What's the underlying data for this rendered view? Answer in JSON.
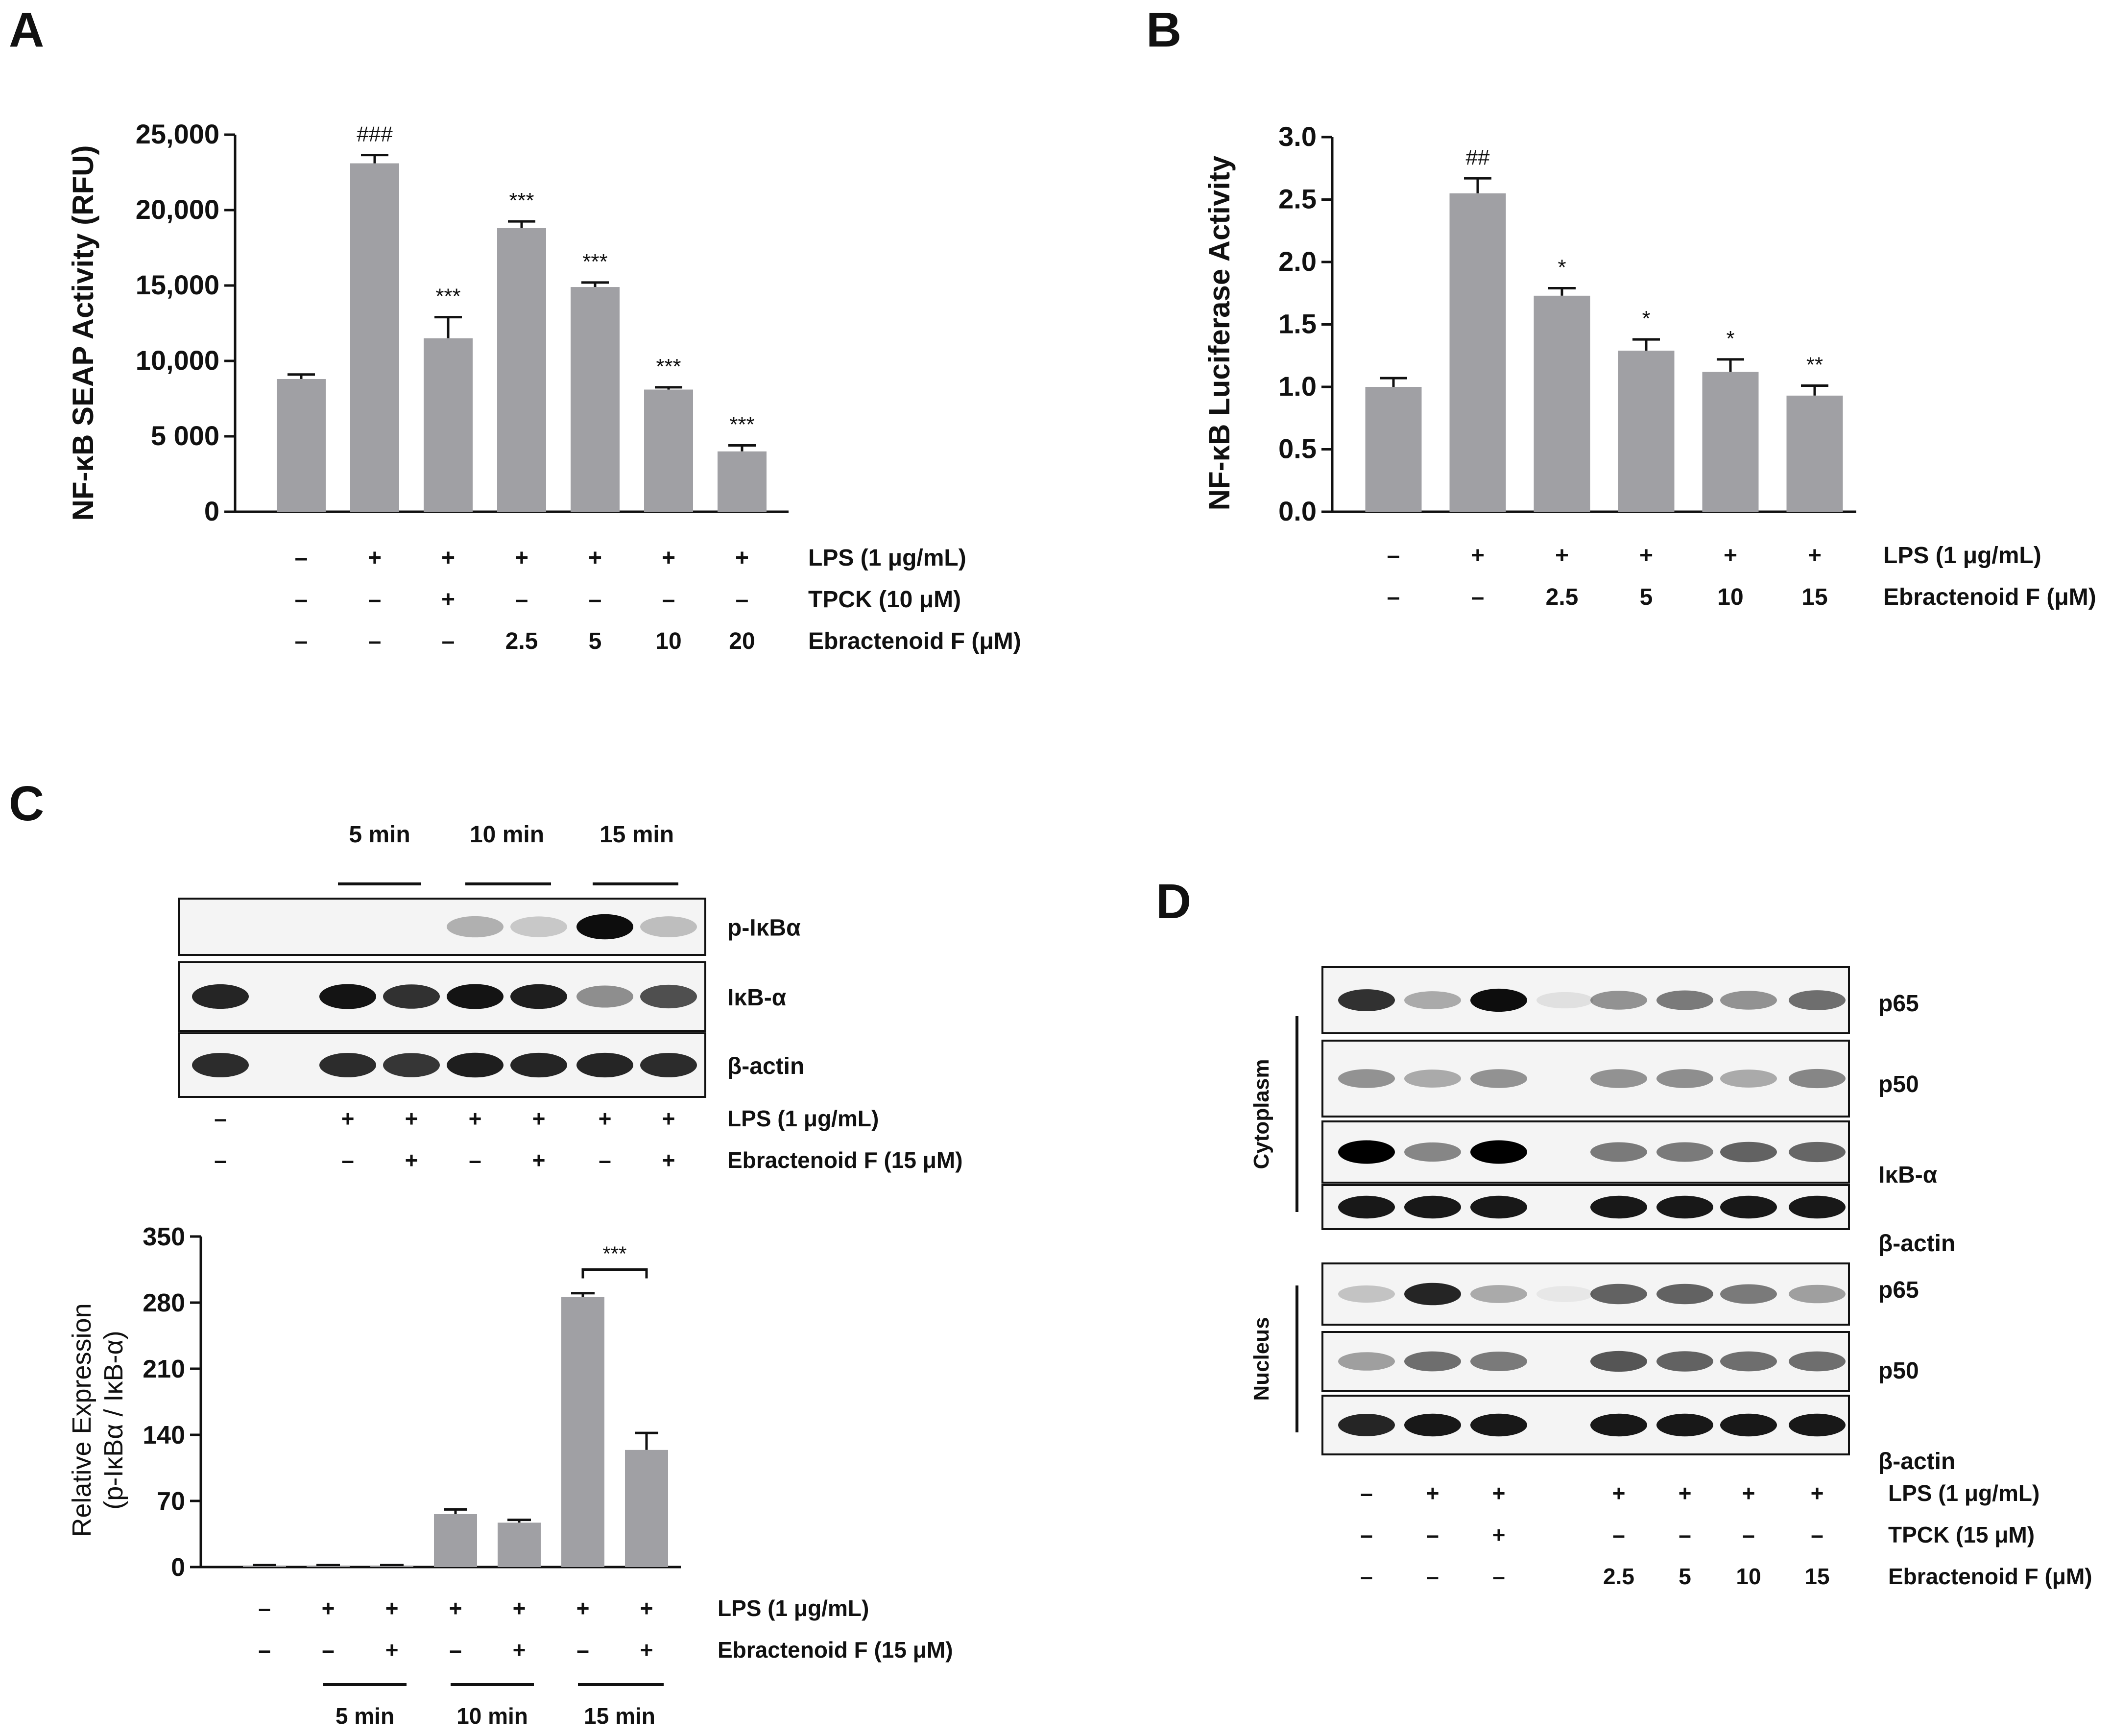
{
  "bar_color": "#a0a0a4",
  "axis_color": "#111111",
  "panel_A": {
    "letter": "A",
    "ylabel": "NF-κB SEAP Activity (RFU)",
    "row_labels": [
      "LPS (1 μg/mL)",
      "TPCK (10 μM)",
      "Ebractenoid F (μM)"
    ],
    "rows": [
      [
        "–",
        "+",
        "+",
        "+",
        "+",
        "+",
        "+"
      ],
      [
        "–",
        "–",
        "+",
        "–",
        "–",
        "–",
        "–"
      ],
      [
        "–",
        "–",
        "–",
        "2.5",
        "5",
        "10",
        "20"
      ]
    ]
  },
  "panel_B": {
    "letter": "B",
    "ylabel": "NF-κB Luciferase Activity",
    "row_labels": [
      "LPS (1 μg/mL)",
      "Ebractenoid F (μM)"
    ],
    "rows": [
      [
        "–",
        "+",
        "+",
        "+",
        "+",
        "+"
      ],
      [
        "–",
        "–",
        "2.5",
        "5",
        "10",
        "15"
      ]
    ]
  },
  "panel_C": {
    "letter": "C",
    "time_labels": [
      "5 min",
      "10 min",
      "15 min"
    ],
    "blot_labels": [
      "p-IκBα",
      "IκB-α",
      "β-actin"
    ],
    "blot_row_labels": [
      "LPS (1 μg/mL)",
      "Ebractenoid F (15 μM)"
    ],
    "blot_rows": [
      [
        "–",
        "+",
        "+",
        "+",
        "+",
        "+",
        "+"
      ],
      [
        "–",
        "–",
        "+",
        "–",
        "+",
        "–",
        "+"
      ]
    ],
    "bands": [
      [
        0,
        0,
        0,
        0.28,
        0.18,
        0.95,
        0.22
      ],
      [
        0.85,
        0,
        0.92,
        0.8,
        0.92,
        0.88,
        0.42,
        0.68
      ],
      [
        0.82,
        0,
        0.82,
        0.78,
        0.88,
        0.85,
        0.85,
        0.82
      ]
    ],
    "ylabel_line1": "Relative Expression",
    "ylabel_line2": "(p-IκBα / IκB-α)",
    "sig_label": "***",
    "bar_row_labels": [
      "LPS (1 μg/mL)",
      "Ebractenoid F (15 μM)"
    ],
    "bar_rows": [
      [
        "–",
        "+",
        "+",
        "+",
        "+",
        "+",
        "+"
      ],
      [
        "–",
        "–",
        "+",
        "–",
        "+",
        "–",
        "+"
      ]
    ]
  },
  "panel_D": {
    "letter": "D",
    "group_labels": [
      "Cytoplasm",
      "Nucleus"
    ],
    "blot_labels": [
      "p65",
      "p50",
      "IκB-α",
      "β-actin",
      "p65",
      "p50",
      "β-actin"
    ],
    "row_labels": [
      "LPS (1 μg/mL)",
      "TPCK (15 μM)",
      "Ebractenoid F (μM)"
    ],
    "rows": [
      [
        "–",
        "+",
        "+",
        "+",
        "+",
        "+",
        "+"
      ],
      [
        "–",
        "–",
        "+",
        "–",
        "–",
        "–",
        "–"
      ],
      [
        "–",
        "–",
        "–",
        "2.5",
        "5",
        "10",
        "15"
      ]
    ],
    "bands": [
      [
        0.8,
        0.3,
        0.95,
        0.08,
        0.4,
        0.5,
        0.4,
        0.55
      ],
      [
        0.4,
        0.3,
        0.4,
        0,
        0.4,
        0.42,
        0.3,
        0.45
      ],
      [
        1.0,
        0.45,
        1.0,
        0,
        0.5,
        0.5,
        0.6,
        0.58
      ],
      [
        0.9,
        0.9,
        0.9,
        0,
        0.9,
        0.9,
        0.9,
        0.9
      ],
      [
        0.2,
        0.85,
        0.3,
        0.05,
        0.6,
        0.6,
        0.5,
        0.35
      ],
      [
        0.35,
        0.55,
        0.5,
        0,
        0.65,
        0.6,
        0.55,
        0.55
      ],
      [
        0.85,
        0.9,
        0.9,
        0,
        0.9,
        0.9,
        0.9,
        0.9
      ]
    ]
  },
  "chart_data": [
    {
      "type": "bar",
      "panel": "A",
      "ylabel": "NF-κB SEAP Activity (RFU)",
      "ylim": [
        0,
        25000
      ],
      "yticks": [
        0,
        5000,
        10000,
        15000,
        20000,
        25000
      ],
      "ytick_labels": [
        "0",
        "5 000",
        "10,000",
        "15,000",
        "20,000",
        "25,000"
      ],
      "values": [
        8800,
        23100,
        11500,
        18800,
        14900,
        8100,
        4000
      ],
      "errors": [
        300,
        550,
        1400,
        450,
        300,
        150,
        400
      ],
      "annotations": [
        "",
        "###",
        "***",
        "***",
        "***",
        "***",
        "***"
      ]
    },
    {
      "type": "bar",
      "panel": "B",
      "ylabel": "NF-κB Luciferase Activity",
      "ylim": [
        0,
        3.0
      ],
      "yticks": [
        0,
        0.5,
        1.0,
        1.5,
        2.0,
        2.5,
        3.0
      ],
      "ytick_labels": [
        "0.0",
        "0.5",
        "1.0",
        "1.5",
        "2.0",
        "2.5",
        "3.0"
      ],
      "values": [
        1.0,
        2.55,
        1.73,
        1.29,
        1.12,
        0.93
      ],
      "errors": [
        0.07,
        0.12,
        0.06,
        0.09,
        0.1,
        0.08
      ],
      "annotations": [
        "",
        "##",
        "*",
        "*",
        "*",
        "**"
      ]
    },
    {
      "type": "bar",
      "panel": "C",
      "ylabel": "Relative Expression (p-IκBα / IκB-α)",
      "ylim": [
        0,
        350
      ],
      "yticks": [
        0,
        70,
        140,
        210,
        280,
        350
      ],
      "ytick_labels": [
        "0",
        "70",
        "140",
        "210",
        "280",
        "350"
      ],
      "values": [
        1,
        1,
        1,
        56,
        47,
        286,
        124
      ],
      "errors": [
        1,
        1,
        1,
        5,
        3,
        4,
        18
      ],
      "time_groups": [
        "5 min",
        "10 min",
        "15 min"
      ],
      "significance": {
        "between": [
          5,
          6
        ],
        "label": "***",
        "y": 315
      }
    }
  ]
}
